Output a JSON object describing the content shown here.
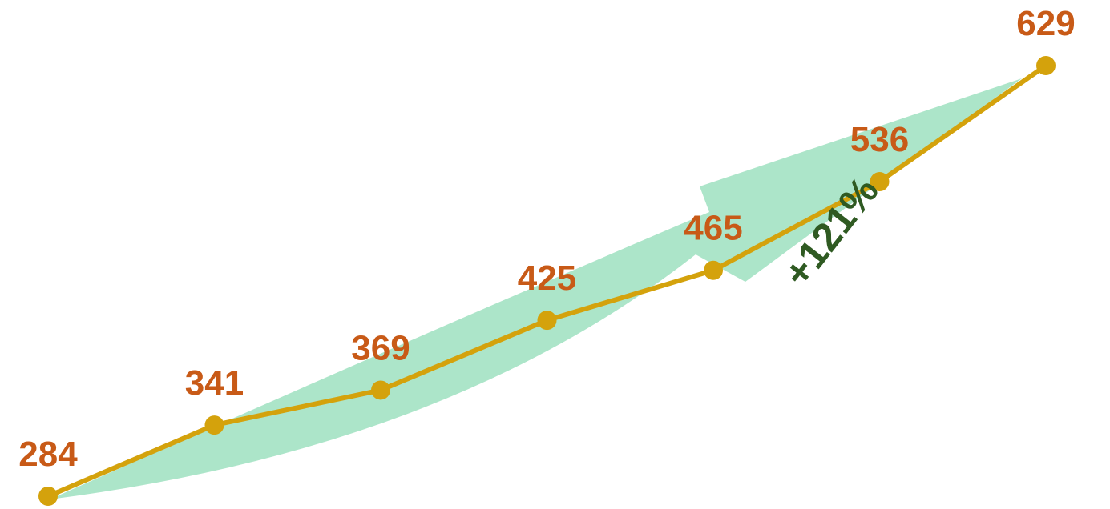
{
  "chart_data": {
    "type": "line",
    "values": [
      284,
      341,
      369,
      425,
      465,
      536,
      629
    ],
    "value_labels": [
      "284",
      "341",
      "369",
      "425",
      "465",
      "536",
      "629"
    ],
    "annotation": "+121%",
    "grid": false,
    "legend": "none"
  },
  "colors": {
    "line": "#D4A20C",
    "labels": "#C85A17",
    "arrow": "#A8E4C6",
    "annotation": "#2F5A22"
  }
}
